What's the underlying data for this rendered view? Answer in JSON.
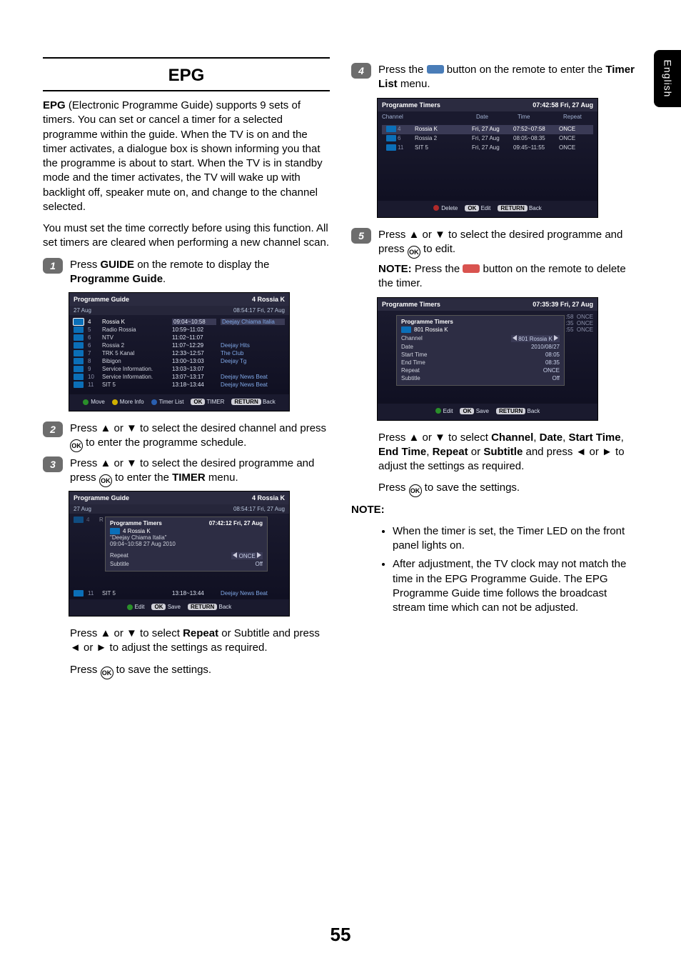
{
  "side_tab": "English",
  "page_number": "55",
  "left": {
    "title": "EPG",
    "intro": "EPG (Electronic Programme Guide) supports 9 sets of timers. You can set or cancel a timer for a selected programme within the guide. When the TV is on and the timer activates, a dialogue box is shown informing you that the programme is about to start. When the TV is in standby mode and the timer activates, the TV will wake up with backlight off, speaker mute on, and change to the channel selected.",
    "intro2": "You must set the time correctly before using this function. All set timers are cleared when performing a new channel scan.",
    "step1_a": "Press ",
    "step1_b": "GUIDE",
    "step1_c": " on the remote to display the ",
    "step1_d": "Programme Guide",
    "step1_e": ".",
    "guide_shot": {
      "title": "Programme Guide",
      "title_right": "4 Rossia K",
      "date": "27 Aug",
      "clock": "08:54:17  Fri, 27 Aug",
      "rows": [
        {
          "n": "4",
          "name": "Rossia K",
          "time": "09:04~10:58",
          "prog": "Deejay Chiama Italia",
          "sel": true
        },
        {
          "n": "5",
          "name": "Radio Rossia",
          "time": "10:59~11:02",
          "prog": ""
        },
        {
          "n": "6",
          "name": "NTV",
          "time": "11:02~11:07",
          "prog": ""
        },
        {
          "n": "6",
          "name": "Rossia 2",
          "time": "11:07~12:29",
          "prog": "Deejay Hits"
        },
        {
          "n": "7",
          "name": "TRK 5 Kanal",
          "time": "12:33~12:57",
          "prog": "The Club"
        },
        {
          "n": "8",
          "name": "Bibigon",
          "time": "13:00~13:03",
          "prog": "Deejay Tg"
        },
        {
          "n": "9",
          "name": "Service Information.",
          "time": "13:03~13:07",
          "prog": ""
        },
        {
          "n": "10",
          "name": "Service Information.",
          "time": "13:07~13:17",
          "prog": "Deejay News Beat"
        },
        {
          "n": "11",
          "name": "SIT 5",
          "time": "13:18~13:44",
          "prog": "Deejay News Beat"
        }
      ],
      "foot": {
        "move": "Move",
        "more": "More Info",
        "list": "Timer List",
        "ok": "OK",
        "timer": "TIMER",
        "ret": "RETURN",
        "back": "Back"
      }
    },
    "step2": "Press ▲ or ▼ to select the desired channel and press ",
    "step2_b": " to enter the programme schedule.",
    "step3": "Press ▲ or ▼ to select the desired programme and press ",
    "step3_b": " to enter the ",
    "step3_c": "TIMER",
    "step3_d": " menu.",
    "guide_timer_shot": {
      "title": "Programme Guide",
      "title_right": "4 Rossia K",
      "date": "27 Aug",
      "clock": "08:54:17  Fri, 27 Aug",
      "overlay_title": "Programme Timers",
      "overlay_clock": "07:42:12  Fri, 27 Aug",
      "overlay_ch": "4 Rossia K",
      "overlay_prog": "\"Deejay Chiama Italia\"",
      "overlay_sched": "09:04~10:58 27 Aug 2010",
      "repeat_lbl": "Repeat",
      "repeat_val": "ONCE",
      "sub_lbl": "Subtitle",
      "sub_val": "Off",
      "last_row": {
        "n": "11",
        "name": "SIT 5",
        "time": "13:18~13:44",
        "prog": "Deejay News Beat"
      },
      "foot": {
        "edit": "Edit",
        "ok": "OK",
        "save": "Save",
        "ret": "RETURN",
        "back": "Back"
      }
    },
    "after3_a": "Press ▲ or ▼ to select ",
    "after3_b": "Repeat",
    "after3_c": " or Subtitle and press ◄ or ► to adjust the settings as required.",
    "after3_save_a": "Press ",
    "after3_save_b": " to save the settings."
  },
  "right": {
    "step4_a": "Press the ",
    "step4_b": " button on the remote to enter the ",
    "step4_c": "Timer List",
    "step4_d": " menu.",
    "timers_shot": {
      "title": "Programme Timers",
      "clock": "07:42:58  Fri, 27 Aug",
      "head": [
        "Channel",
        "",
        "Date",
        "Time",
        "Repeat"
      ],
      "rows": [
        {
          "n": "4",
          "name": "Rossia K",
          "date": "Fri, 27 Aug",
          "time": "07:52~07:58",
          "rep": "ONCE",
          "sel": true
        },
        {
          "n": "6",
          "name": "Rossia 2",
          "date": "Fri, 27 Aug",
          "time": "08:05~08:35",
          "rep": "ONCE"
        },
        {
          "n": "11",
          "name": "SIT 5",
          "date": "Fri, 27 Aug",
          "time": "09:45~11:55",
          "rep": "ONCE"
        }
      ],
      "foot": {
        "del": "Delete",
        "ok": "OK",
        "edit": "Edit",
        "ret": "RETURN",
        "back": "Back"
      }
    },
    "step5_a": "Press ▲ or ▼ to select the desired programme and press ",
    "step5_b": " to edit.",
    "note_a": "NOTE:",
    "note_b": " Press the ",
    "note_c": " button on the remote to delete the timer.",
    "edit_shot": {
      "title": "Programme Timers",
      "clock": "07:35:39  Fri, 27 Aug",
      "overlay_title": "Programme Timers",
      "ch_line": "801 Rossia K",
      "rows": [
        {
          "k": "Channel",
          "v": "801 Rossia K",
          "sel": true
        },
        {
          "k": "Date",
          "v": "2010/08/27"
        },
        {
          "k": "Start Time",
          "v": "08:05"
        },
        {
          "k": "End Time",
          "v": "08:35"
        },
        {
          "k": "Repeat",
          "v": "ONCE"
        },
        {
          "k": "Subtitle",
          "v": "Off"
        }
      ],
      "side": [
        {
          "n": ":58",
          "r": "ONCE"
        },
        {
          "n": ":35",
          "r": "ONCE"
        },
        {
          "n": ":55",
          "r": "ONCE"
        }
      ],
      "foot": {
        "edit": "Edit",
        "ok": "OK",
        "save": "Save",
        "ret": "RETURN",
        "back": "Back"
      }
    },
    "after5_a": "Press ▲ or ▼ to select ",
    "after5_chan": "Channel",
    "after5_date": "Date",
    "after5_st": "Start Time",
    "after5_et": "End Time",
    "after5_rep": "Repeat",
    "after5_sub": "Subtitle",
    "after5_b": " and press ◄ or ► to adjust the settings as required.",
    "after5_save_a": "Press ",
    "after5_save_b": " to save the settings.",
    "note2": "NOTE:",
    "bullets": [
      "When the timer is set, the Timer LED on the front panel lights on.",
      "After adjustment, the TV clock may not match the time in the EPG Programme Guide. The EPG Programme Guide time follows the broadcast stream time which can not be adjusted."
    ]
  }
}
